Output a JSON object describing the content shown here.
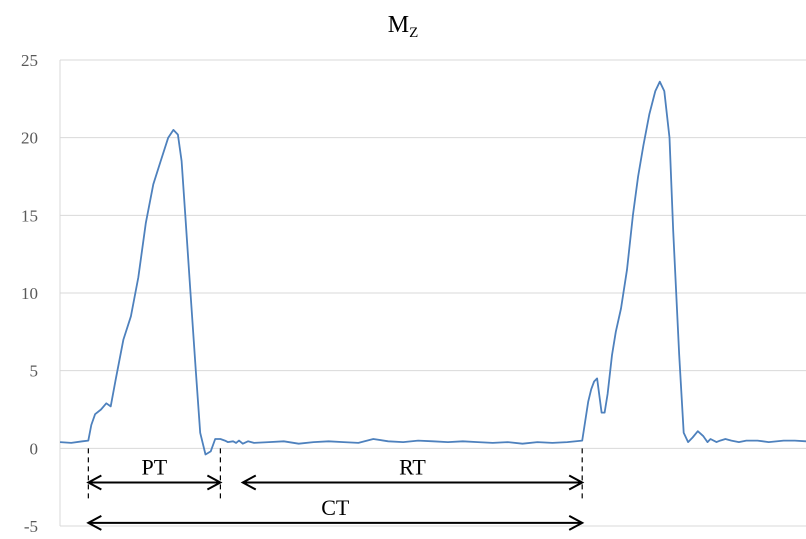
{
  "chart_data": {
    "type": "line",
    "title": "M",
    "title_subscript": "Z",
    "xlabel": "",
    "ylabel": "",
    "ylim": [
      -5,
      25
    ],
    "yticks": [
      25,
      20,
      15,
      10,
      5,
      0,
      -5
    ],
    "ytick_labels": [
      "25",
      "20",
      "15",
      "10",
      "5",
      "0",
      "-5"
    ],
    "grid": "horizontal",
    "line_color": "#4e81bd",
    "grid_color": "#d9d9d9",
    "xlim": [
      0,
      1000
    ],
    "series": [
      {
        "x": [
          0,
          15,
          30,
          38,
          42,
          47,
          55,
          62,
          68,
          75,
          85,
          95,
          105,
          115,
          125,
          135,
          145,
          152,
          158,
          163,
          168,
          175,
          182,
          188,
          195,
          202,
          208,
          215,
          221,
          225,
          232,
          236,
          240,
          245,
          252,
          260,
          280,
          300,
          320,
          340,
          360,
          380,
          400,
          420,
          440,
          460,
          480,
          500,
          520,
          540,
          560,
          580,
          600,
          620,
          640,
          660,
          680,
          700,
          708,
          712,
          716,
          720,
          726,
          730,
          734,
          740,
          745,
          752,
          760,
          768,
          775,
          782,
          790,
          798,
          804,
          810,
          817,
          822,
          830,
          836,
          842,
          848,
          855,
          862,
          868,
          872,
          880,
          885,
          892,
          900,
          910,
          920,
          935,
          950,
          970,
          985,
          1000
        ],
        "y": [
          0.4,
          0.35,
          0.45,
          0.5,
          1.5,
          2.2,
          2.5,
          2.9,
          2.7,
          4.5,
          7.0,
          8.5,
          11.0,
          14.5,
          17.0,
          18.5,
          20.0,
          20.5,
          20.2,
          18.5,
          15.0,
          10.0,
          5.0,
          1.0,
          -0.4,
          -0.2,
          0.6,
          0.6,
          0.5,
          0.4,
          0.45,
          0.35,
          0.5,
          0.3,
          0.45,
          0.35,
          0.4,
          0.45,
          0.3,
          0.4,
          0.45,
          0.4,
          0.35,
          0.6,
          0.45,
          0.4,
          0.5,
          0.45,
          0.4,
          0.45,
          0.4,
          0.35,
          0.4,
          0.3,
          0.4,
          0.35,
          0.4,
          0.5,
          3.0,
          3.8,
          4.3,
          4.5,
          2.3,
          2.3,
          3.5,
          6.0,
          7.5,
          9.0,
          11.5,
          15.0,
          17.5,
          19.5,
          21.5,
          23.0,
          23.6,
          23.0,
          20.0,
          14.0,
          6.0,
          1.0,
          0.4,
          0.7,
          1.1,
          0.8,
          0.4,
          0.6,
          0.4,
          0.5,
          0.6,
          0.5,
          0.4,
          0.5,
          0.5,
          0.4,
          0.5,
          0.5,
          0.45
        ]
      }
    ],
    "annotations": [
      {
        "label": "PT",
        "from": 38,
        "to": 215,
        "y": -2.2,
        "dashed_at": [
          38,
          215
        ]
      },
      {
        "label": "RT",
        "from": 245,
        "to": 700,
        "y": -2.2,
        "dashed_at": [
          700
        ]
      },
      {
        "label": "CT",
        "from": 38,
        "to": 700,
        "y": -4.8,
        "dashed_at": []
      }
    ]
  }
}
